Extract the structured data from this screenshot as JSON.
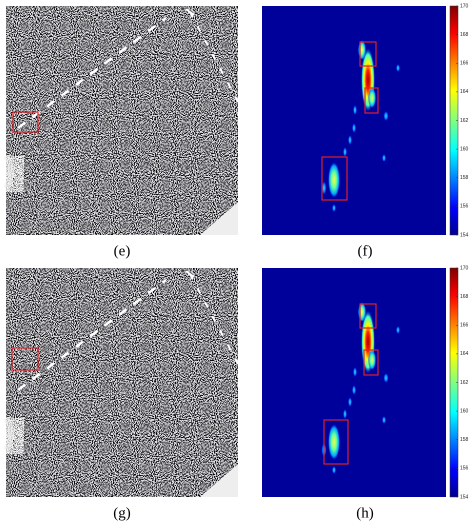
{
  "panels": [
    {
      "label": "(e)"
    },
    {
      "label": "(f)"
    },
    {
      "label": "(g)"
    },
    {
      "label": "(h)"
    }
  ],
  "colorbar": {
    "range": [
      154,
      170
    ],
    "ticks": [
      154,
      156,
      158,
      160,
      162,
      164,
      166,
      168,
      170
    ]
  }
}
